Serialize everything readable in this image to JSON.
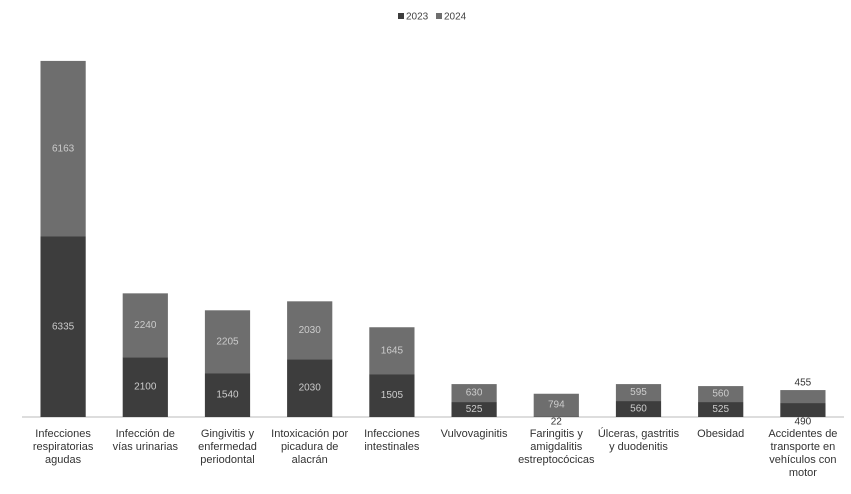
{
  "chart_data": {
    "type": "stacked_bar",
    "categories": [
      "Infecciones respiratorias agudas",
      "Infección de vías urinarias",
      "Gingivitis y enfermedad periodontal",
      "Intoxicación por picadura de alacrán",
      "Infecciones intestinales",
      "Vulvovaginitis",
      "Faringitis y amigdalitis estreptocócicas",
      "Úlceras, gastritis y duodenitis",
      "Obesidad",
      "Accidentes de transporte en vehículos con motor"
    ],
    "series": [
      {
        "name": "2023",
        "color": "#3d3d3d",
        "values": [
          6335,
          2100,
          1540,
          2030,
          1505,
          525,
          22,
          560,
          525,
          490
        ]
      },
      {
        "name": "2024",
        "color": "#6e6e6e",
        "values": [
          6163,
          2240,
          2205,
          2030,
          1645,
          630,
          794,
          595,
          560,
          455
        ]
      }
    ],
    "ylim": [
      0,
      12600
    ]
  }
}
